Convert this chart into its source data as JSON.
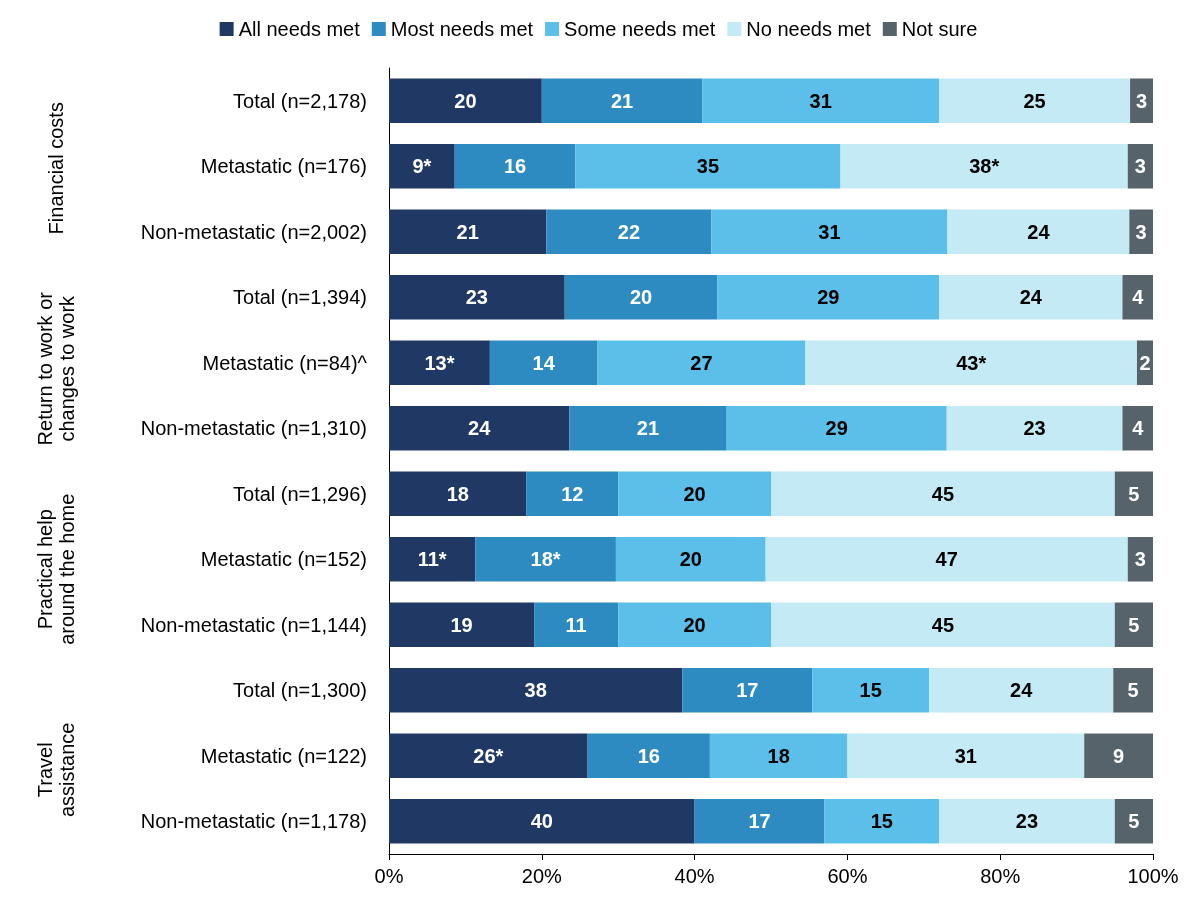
{
  "chart_data": {
    "type": "bar",
    "orientation": "horizontal",
    "stacked": true,
    "categories": [
      "Total (n=2,178)",
      "Metastatic (n=176)",
      "Non-metastatic (n=2,002)",
      "Total (n=1,394)",
      "Metastatic (n=84)^",
      "Non-metastatic (n=1,310)",
      "Total (n=1,296)",
      "Metastatic (n=152)",
      "Non-metastatic (n=1,144)",
      "Total (n=1,300)",
      "Metastatic (n=122)",
      "Non-metastatic (n=1,178)"
    ],
    "series": [
      {
        "name": "All needs met",
        "color": "#1f3864",
        "values": [
          20,
          8.6,
          20.6,
          23,
          13.2,
          23.6,
          18,
          11.3,
          19,
          38.4,
          26,
          40
        ],
        "value_labels": [
          "20",
          "9*",
          "21",
          "23",
          "13*",
          "24",
          "18",
          "11*",
          "19",
          "38",
          "26*",
          "40"
        ]
      },
      {
        "name": "Most needs met",
        "color": "#2e8bc2",
        "values": [
          21,
          15.8,
          21.6,
          20,
          14.1,
          20.6,
          12,
          18.4,
          11,
          17.0,
          16,
          17
        ],
        "value_labels": [
          "21",
          "16",
          "22",
          "20",
          "14",
          "21",
          "12",
          "18*",
          "11",
          "17",
          "16",
          "17"
        ]
      },
      {
        "name": "Some needs met",
        "color": "#5bbfe9",
        "values": [
          31,
          34.7,
          30.9,
          29,
          27.2,
          28.8,
          20,
          19.6,
          20,
          15.3,
          18,
          15
        ],
        "value_labels": [
          "31",
          "35",
          "31",
          "29",
          "27",
          "29",
          "20",
          "20",
          "20",
          "15",
          "18",
          "15"
        ]
      },
      {
        "name": "No needs met",
        "color": "#c4eaf6",
        "values": [
          25,
          37.6,
          23.8,
          24,
          43.4,
          23.0,
          45,
          47.4,
          45,
          24.1,
          31,
          23
        ],
        "value_labels": [
          "25",
          "38*",
          "24",
          "24",
          "43*",
          "23",
          "45",
          "47",
          "45",
          "24",
          "31",
          "23"
        ]
      },
      {
        "name": "Not sure",
        "color": "#56636b",
        "values": [
          3,
          3.3,
          3.1,
          4,
          2.1,
          4.0,
          5,
          3.3,
          5,
          5.2,
          9,
          5
        ],
        "value_labels": [
          "3",
          "3",
          "3",
          "4",
          "2",
          "4",
          "5",
          "3",
          "5",
          "5",
          "9",
          "5"
        ]
      }
    ],
    "xlim": [
      0,
      100
    ],
    "xticks": [
      {
        "value": 0,
        "label": "0%"
      },
      {
        "value": 20,
        "label": "20%"
      },
      {
        "value": 40,
        "label": "40%"
      },
      {
        "value": 60,
        "label": "60%"
      },
      {
        "value": 80,
        "label": "80%"
      },
      {
        "value": 100,
        "label": "100%"
      }
    ],
    "legend": "top",
    "annotations": [
      "Financial costs",
      "Return to work or\nchanges to work",
      "Practical help\naround the home",
      "Travel\nassistance"
    ]
  }
}
